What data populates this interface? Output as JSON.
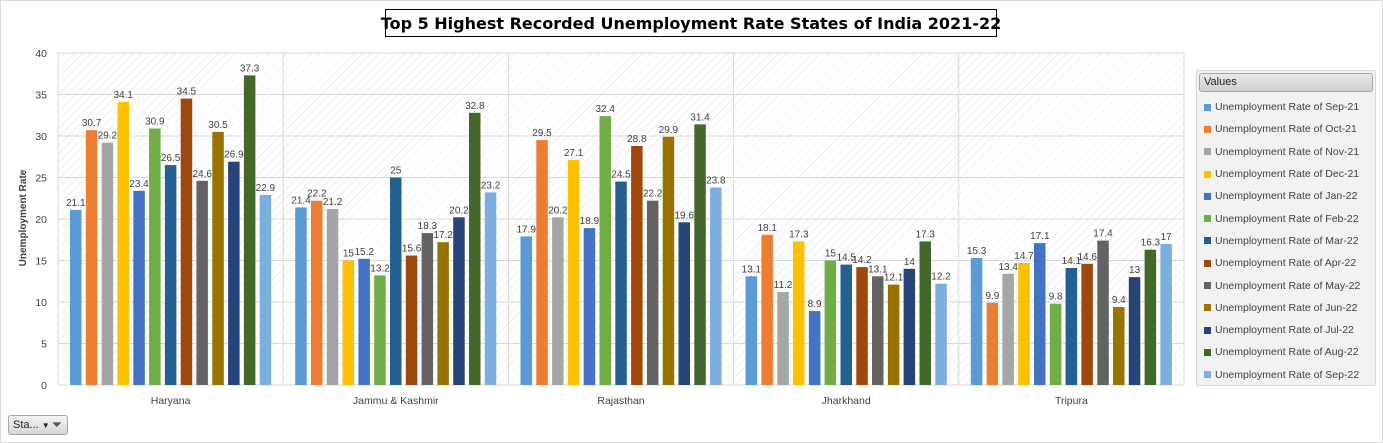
{
  "chart_data": {
    "type": "bar",
    "title": "Top 5 Highest Recorded Unemployment Rate States of India 2021-22",
    "ylabel": "Unemployment Rate",
    "xlabel": "",
    "ylim": [
      0,
      40
    ],
    "yticks": [
      0,
      5,
      10,
      15,
      20,
      25,
      30,
      35,
      40
    ],
    "grid": true,
    "legend_position": "right",
    "legend_title": "Values",
    "categories": [
      "Haryana",
      "Jammu & Kashmir",
      "Rajasthan",
      "Jharkhand",
      "Tripura"
    ],
    "series": [
      {
        "name": "Unemployment Rate of Sep-21",
        "color": "#5b9bd5",
        "values": [
          21.1,
          21.4,
          17.9,
          13.1,
          15.3
        ]
      },
      {
        "name": "Unemployment Rate of Oct-21",
        "color": "#ed7d31",
        "values": [
          30.7,
          22.2,
          29.5,
          18.1,
          9.9
        ]
      },
      {
        "name": "Unemployment Rate of Nov-21",
        "color": "#a5a5a5",
        "values": [
          29.2,
          21.2,
          20.2,
          11.2,
          13.4
        ]
      },
      {
        "name": "Unemployment Rate of Dec-21",
        "color": "#ffc000",
        "values": [
          34.1,
          15,
          27.1,
          17.3,
          14.7
        ]
      },
      {
        "name": "Unemployment Rate of Jan-22",
        "color": "#4472c4",
        "values": [
          23.4,
          15.2,
          18.9,
          8.9,
          17.1
        ]
      },
      {
        "name": "Unemployment Rate of Feb-22",
        "color": "#70ad47",
        "values": [
          30.9,
          13.2,
          32.4,
          15,
          9.8
        ]
      },
      {
        "name": "Unemployment Rate of Mar-22",
        "color": "#255e91",
        "values": [
          26.5,
          25,
          24.5,
          14.5,
          14.1
        ]
      },
      {
        "name": "Unemployment Rate of Apr-22",
        "color": "#9e480e",
        "values": [
          34.5,
          15.6,
          28.8,
          14.2,
          14.6
        ]
      },
      {
        "name": "Unemployment Rate of May-22",
        "color": "#636363",
        "values": [
          24.6,
          18.3,
          22.2,
          13.1,
          17.4
        ]
      },
      {
        "name": "Unemployment Rate of Jun-22",
        "color": "#997300",
        "values": [
          30.5,
          17.2,
          29.9,
          12.1,
          9.4
        ]
      },
      {
        "name": "Unemployment Rate of Jul-22",
        "color": "#264478",
        "values": [
          26.9,
          20.2,
          19.6,
          14,
          13
        ]
      },
      {
        "name": "Unemployment Rate of Aug-22",
        "color": "#43682b",
        "values": [
          37.3,
          32.8,
          31.4,
          17.3,
          16.3
        ]
      },
      {
        "name": "Unemployment Rate of Sep-22",
        "color": "#7cafdd",
        "values": [
          22.9,
          23.2,
          23.8,
          12.2,
          17
        ]
      }
    ]
  },
  "filter_button": {
    "label": "Sta..."
  }
}
